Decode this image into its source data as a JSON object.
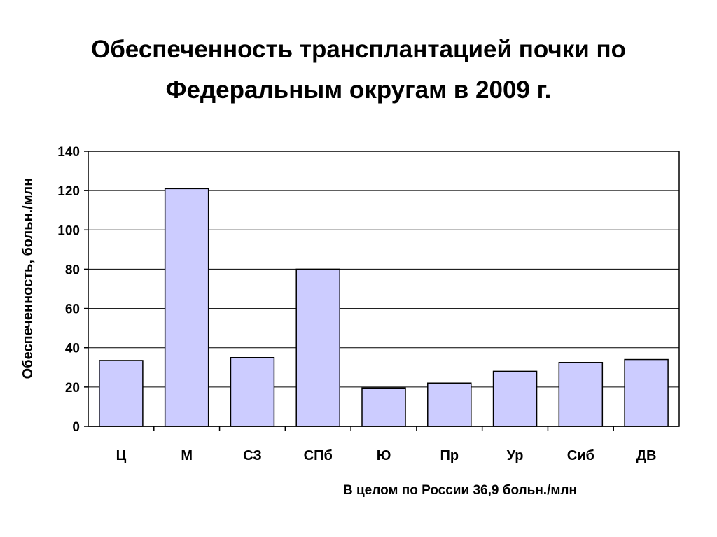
{
  "title_line1": "Обеспеченность трансплантацией почки по",
  "title_line2": "Федеральным округам в 2009 г.",
  "footnote": "В целом по России 36,9 больн./млн",
  "colors": {
    "bar_fill": "#ccccff",
    "bar_stroke": "#000000",
    "grid": "#000000"
  },
  "chart_data": {
    "type": "bar",
    "title": "Обеспеченность трансплантацией почки по Федеральным округам в 2009 г.",
    "xlabel": "",
    "ylabel": "Обеспеченность, больн./млн",
    "categories": [
      "Ц",
      "М",
      "СЗ",
      "СПб",
      "Ю",
      "Пр",
      "Ур",
      "Сиб",
      "ДВ"
    ],
    "values": [
      33.5,
      121,
      35,
      80,
      19.5,
      22,
      28,
      32.5,
      34
    ],
    "ylim": [
      0,
      140
    ],
    "yticks": [
      "0",
      "20",
      "40",
      "60",
      "80",
      "100",
      "120",
      "140"
    ],
    "grid": true,
    "legend": false
  }
}
